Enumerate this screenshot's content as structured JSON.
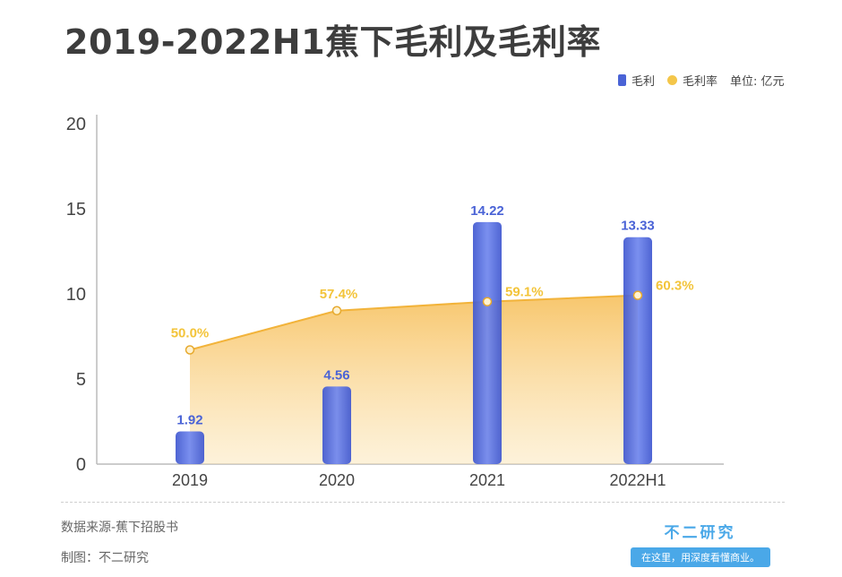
{
  "title": "2019-2022H1蕉下毛利及毛利率",
  "legend": {
    "bar_label": "毛利",
    "line_label": "毛利率",
    "unit_label": "单位: 亿元"
  },
  "chart_data": {
    "type": "bar",
    "categories": [
      "2019",
      "2020",
      "2021",
      "2022H1"
    ],
    "series": [
      {
        "name": "毛利",
        "type": "bar",
        "values": [
          1.92,
          4.56,
          14.22,
          13.33
        ],
        "labels": [
          "1.92",
          "4.56",
          "14.22",
          "13.33"
        ]
      },
      {
        "name": "毛利率",
        "type": "area",
        "values": [
          50.0,
          57.4,
          59.1,
          60.3
        ],
        "labels": [
          "50.0%",
          "57.4%",
          "59.1%",
          "60.3%"
        ]
      }
    ],
    "yticks": [
      "0",
      "5",
      "10",
      "15",
      "20"
    ],
    "ylim": [
      0,
      20
    ],
    "grid": false,
    "legend_position": "top-right"
  },
  "colors": {
    "bar": "#4a63d6",
    "bar_label": "#4a63d6",
    "area_top": "#f6b94a",
    "area_bottom": "#fbe3b0",
    "line_label": "#f3c43a"
  },
  "footer": {
    "source": "数据来源-蕉下招股书",
    "made_by": "制图：不二研究"
  },
  "brand": {
    "name": "不二研究",
    "tagline": "在这里，用深度看懂商业。"
  }
}
